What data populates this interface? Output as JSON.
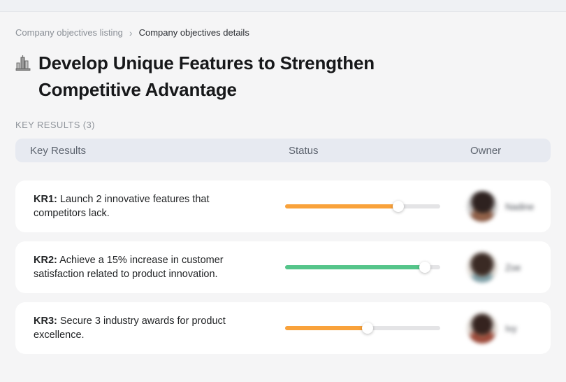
{
  "breadcrumb": {
    "separator": "›",
    "items": [
      {
        "label": "Company objectives listing"
      },
      {
        "label": "Company objectives details"
      }
    ]
  },
  "page": {
    "title": "Develop Unique Features to Strengthen Competitive Advantage",
    "title_icon": "buildings-icon",
    "section_label": "KEY RESULTS (3)"
  },
  "table": {
    "columns": {
      "key_results": "Key Results",
      "status": "Status",
      "owner": "Owner"
    },
    "rows": [
      {
        "kr_label": "KR1:",
        "text": "Launch 2 innovative features that competitors lack.",
        "progress_percent": 73,
        "progress_color": "#F9A23B",
        "owner": "Nadine"
      },
      {
        "kr_label": "KR2:",
        "text": "Achieve a 15% increase in customer satisfaction related to product innovation.",
        "progress_percent": 90,
        "progress_color": "#55C58A",
        "owner": "Zoe"
      },
      {
        "kr_label": "KR3:",
        "text": "Secure 3 industry awards for product excellence.",
        "progress_percent": 53,
        "progress_color": "#F9A23B",
        "owner": "Ivy"
      }
    ]
  },
  "colors": {
    "orange_progress": "#F9A23B",
    "green_progress": "#55C58A",
    "track": "#E4E4E6",
    "header_bg": "#E7EAF1",
    "card_bg": "#FFFFFF",
    "page_bg": "#F5F5F6"
  }
}
